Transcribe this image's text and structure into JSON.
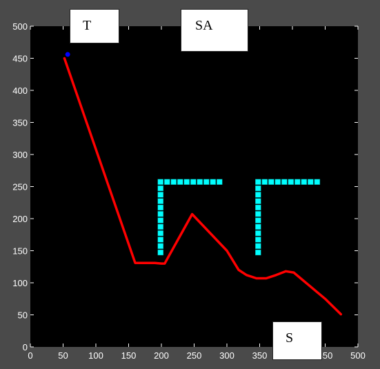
{
  "chart_data": {
    "type": "line",
    "xlim": [
      0,
      500
    ],
    "ylim": [
      0,
      500
    ],
    "x_ticks": [
      "0",
      "50",
      "100",
      "150",
      "200",
      "250",
      "300",
      "350",
      "400",
      "450",
      "500"
    ],
    "y_ticks": [
      "0",
      "50",
      "100",
      "150",
      "200",
      "250",
      "300",
      "350",
      "400",
      "450",
      "500"
    ],
    "grid": false,
    "colors": {
      "background": "#4a4a4a",
      "axes_bg": "#000000",
      "path": "#ff0000",
      "obstacle": "#00ffff",
      "target": "#0000ff",
      "text": "#ffffff"
    },
    "series": [
      {
        "values_xy": [
          [
            52,
            450
          ],
          [
            160,
            131
          ],
          [
            170,
            131
          ],
          [
            180,
            131
          ],
          [
            190,
            131
          ],
          [
            200,
            130
          ],
          [
            205,
            130
          ],
          [
            247,
            207
          ],
          [
            300,
            150
          ],
          [
            318,
            120
          ],
          [
            330,
            112
          ],
          [
            345,
            107
          ],
          [
            360,
            107
          ],
          [
            375,
            112
          ],
          [
            390,
            118
          ],
          [
            402,
            116
          ],
          [
            450,
            75
          ],
          [
            474,
            51
          ]
        ]
      }
    ],
    "target_point": [
      57,
      456
    ],
    "obstacles": [
      [
        [
          194,
          252
        ],
        [
          204,
          252
        ],
        [
          214,
          252
        ],
        [
          224,
          252
        ],
        [
          234,
          252
        ],
        [
          244,
          252
        ],
        [
          254,
          252
        ],
        [
          264,
          252
        ],
        [
          274,
          252
        ],
        [
          284,
          252
        ],
        [
          194,
          242
        ],
        [
          194,
          232
        ],
        [
          194,
          222
        ],
        [
          194,
          212
        ],
        [
          194,
          202
        ],
        [
          194,
          192
        ],
        [
          194,
          182
        ],
        [
          194,
          172
        ],
        [
          194,
          162
        ],
        [
          194,
          152
        ],
        [
          194,
          142
        ]
      ],
      [
        [
          343,
          252
        ],
        [
          353,
          252
        ],
        [
          363,
          252
        ],
        [
          373,
          252
        ],
        [
          383,
          252
        ],
        [
          393,
          252
        ],
        [
          403,
          252
        ],
        [
          413,
          252
        ],
        [
          423,
          252
        ],
        [
          433,
          252
        ],
        [
          343,
          242
        ],
        [
          343,
          232
        ],
        [
          343,
          222
        ],
        [
          343,
          212
        ],
        [
          343,
          202
        ],
        [
          343,
          192
        ],
        [
          343,
          182
        ],
        [
          343,
          172
        ],
        [
          343,
          162
        ],
        [
          343,
          152
        ],
        [
          343,
          142
        ]
      ]
    ]
  },
  "labels": {
    "target": "T",
    "sa": "SA",
    "start": "S"
  }
}
